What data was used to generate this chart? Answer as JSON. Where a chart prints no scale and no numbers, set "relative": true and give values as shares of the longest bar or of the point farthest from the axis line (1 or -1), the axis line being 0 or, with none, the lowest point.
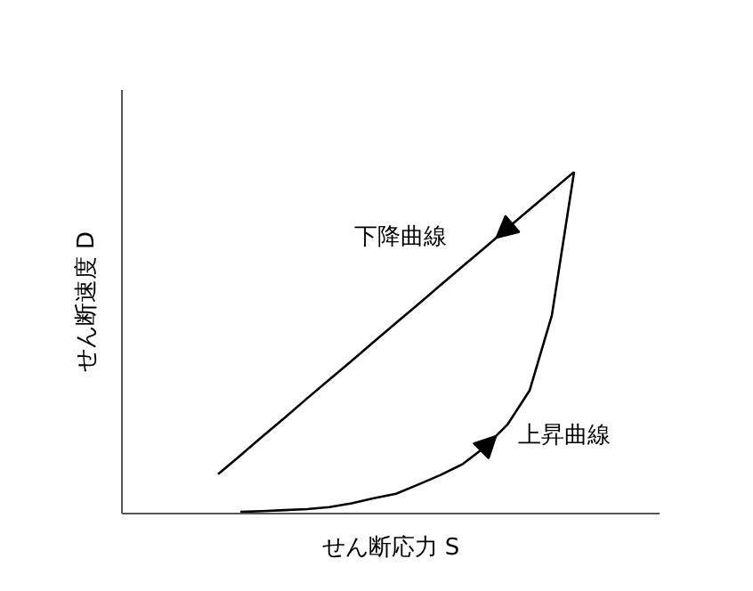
{
  "chart_data": {
    "type": "line",
    "relative": true,
    "xlabel": "せん断応力 S",
    "ylabel": "せん断速度 D",
    "grid": false,
    "marker": "none",
    "line_style": "solid",
    "categories": [
      null,
      null,
      null,
      null,
      null,
      null,
      null,
      null,
      null,
      null,
      null,
      null,
      null,
      null,
      null,
      null,
      null
    ],
    "series": [
      {
        "name": "上昇曲線",
        "color": "#000000",
        "values": [
          null,
          0.005,
          0.007,
          0.01,
          0.013,
          0.019,
          0.03,
          0.045,
          0.058,
          0.085,
          0.113,
          0.145,
          0.195,
          0.26,
          0.36,
          0.58,
          1.0
        ]
      },
      {
        "name": "下降曲線",
        "color": "#000000",
        "values": [
          0.115,
          0.17,
          0.226,
          0.281,
          0.337,
          0.392,
          0.447,
          0.503,
          0.558,
          0.613,
          0.669,
          0.724,
          0.779,
          0.835,
          0.89,
          0.945,
          1.0
        ]
      }
    ]
  }
}
